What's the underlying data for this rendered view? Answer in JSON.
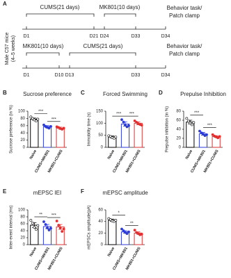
{
  "panel_a": {
    "label": "A",
    "subject": [
      "Male C57 mice",
      "(4–5 weeks)"
    ],
    "timeline_1": {
      "phases": [
        "CUMS(21 days)",
        "MK801(10 days)"
      ],
      "days": [
        "D1",
        "D21",
        "D24",
        "D33",
        "D34"
      ],
      "end": [
        "Behavior task/",
        "Patch clamp"
      ]
    },
    "timeline_2": {
      "phases": [
        "MK801(10 days)",
        "CUMS(21 days)"
      ],
      "days": [
        "D1",
        "D10",
        "D13",
        "D33",
        "D34"
      ],
      "end": [
        "Behavior task/",
        "Patch clamp"
      ]
    }
  },
  "chart_data": [
    {
      "type": "bar",
      "label": "B",
      "title": "Sucrose preference",
      "y_label": "Sucrose preference (in %)",
      "categories": [
        "Naive",
        "CUMS+MK801",
        "MK801+CUMS"
      ],
      "colors": [
        "#000000",
        "#2b3bd6",
        "#e03030"
      ],
      "values": [
        78,
        57,
        53
      ],
      "errors": [
        3,
        3,
        3
      ],
      "points": [
        [
          84,
          80,
          76,
          73,
          78
        ],
        [
          62,
          58,
          55,
          53,
          58
        ],
        [
          57,
          55,
          52,
          50,
          53
        ]
      ],
      "significance": [
        "***",
        "***"
      ],
      "ylim": [
        0,
        100
      ],
      "yticks": [
        0,
        20,
        40,
        60,
        80,
        100
      ]
    },
    {
      "type": "bar",
      "label": "C",
      "title": "Forced Swimming",
      "y_label": "Immobility time (s)",
      "categories": [
        "Naive",
        "CUMS+MK801",
        "MK801+CUMS"
      ],
      "colors": [
        "#000000",
        "#2b3bd6",
        "#e03030"
      ],
      "values": [
        43,
        97,
        100
      ],
      "errors": [
        4,
        9,
        6
      ],
      "points": [
        [
          48,
          45,
          40,
          38,
          43
        ],
        [
          115,
          105,
          92,
          85,
          90
        ],
        [
          110,
          104,
          98,
          95,
          92
        ]
      ],
      "significance": [
        "***",
        "***"
      ],
      "ylim": [
        0,
        150
      ],
      "yticks": [
        0,
        50,
        100,
        150
      ]
    },
    {
      "type": "bar",
      "label": "D",
      "title": "Prepulse Inhibition",
      "y_label": "Prepulse inhibition (in %)",
      "categories": [
        "Naive",
        "CUMS+MK801",
        "MK801+CUMS"
      ],
      "colors": [
        "#000000",
        "#2b3bd6",
        "#e03030"
      ],
      "values": [
        56,
        30,
        24
      ],
      "errors": [
        4,
        3,
        2
      ],
      "points": [
        [
          64,
          58,
          54,
          50,
          55
        ],
        [
          36,
          32,
          29,
          26,
          28
        ],
        [
          28,
          25,
          23,
          21,
          24
        ]
      ],
      "significance": [
        "***",
        "***"
      ],
      "ylim": [
        0,
        80
      ],
      "yticks": [
        0,
        20,
        40,
        60,
        80
      ]
    },
    {
      "type": "bar",
      "label": "E",
      "title": "mEPSC IEI",
      "y_label": "Inter-event interval (ms)",
      "categories": [
        "Naive",
        "CUMS+MK801",
        "MK801+CUMS"
      ],
      "colors": [
        "#000000",
        "#2b3bd6",
        "#e03030"
      ],
      "values": [
        56,
        52,
        51
      ],
      "errors": [
        7,
        6,
        7
      ],
      "points": [
        [
          70,
          62,
          50,
          44,
          55
        ],
        [
          66,
          58,
          48,
          42,
          47
        ],
        [
          68,
          56,
          48,
          38,
          45
        ]
      ],
      "significance": [
        "**",
        "***"
      ],
      "ylim": [
        0,
        100
      ],
      "yticks": [
        0,
        20,
        40,
        60,
        80,
        100
      ]
    },
    {
      "type": "bar",
      "label": "F",
      "title": "mEPSC amplitude",
      "y_label": "mEPSCs amplitude(pA)",
      "categories": [
        "Naive",
        "CUMS+MK801",
        "MK801+CUMS"
      ],
      "colors": [
        "#000000",
        "#2b3bd6",
        "#e03030"
      ],
      "values": [
        42,
        22,
        20
      ],
      "errors": [
        2,
        2,
        2
      ],
      "points": [
        [
          45,
          43,
          41,
          40,
          42
        ],
        [
          27,
          24,
          21,
          19,
          22
        ],
        [
          25,
          21,
          19,
          17,
          18
        ]
      ],
      "significance": [
        "*",
        "**"
      ],
      "ylim": [
        0,
        60
      ],
      "yticks": [
        0,
        20,
        40,
        60
      ]
    }
  ]
}
